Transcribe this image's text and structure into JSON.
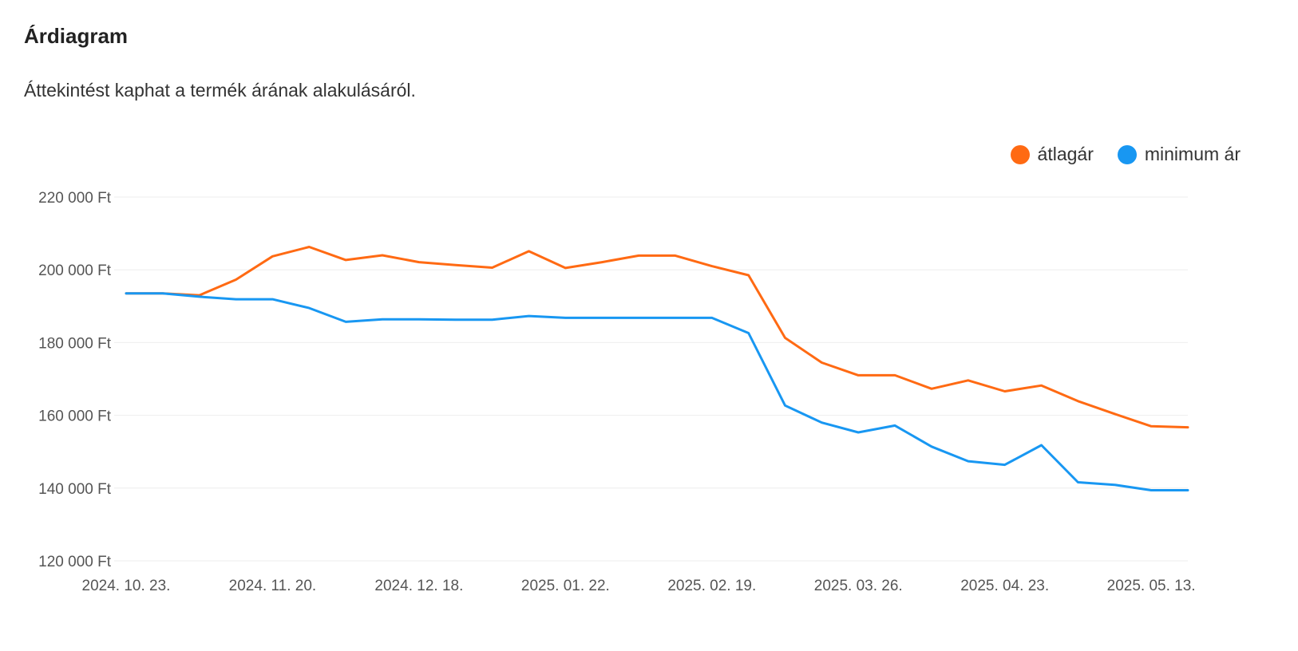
{
  "header": {
    "title": "Árdiagram",
    "subtitle": "Áttekintést kaphat a termék árának alakulásáról."
  },
  "colors": {
    "avg": "#ff6a13",
    "min": "#1897f2"
  },
  "chart_data": {
    "type": "line",
    "title": "",
    "xlabel": "",
    "ylabel": "",
    "ylim": [
      120000,
      220000
    ],
    "yticks": [
      220000,
      200000,
      180000,
      160000,
      140000,
      120000
    ],
    "ytick_labels": [
      "220 000 Ft",
      "200 000 Ft",
      "180 000 Ft",
      "160 000 Ft",
      "140 000 Ft",
      "120 000 Ft"
    ],
    "xtick_labels": [
      "2024. 10. 23.",
      "2024. 11. 20.",
      "2024. 12. 18.",
      "2025. 01. 22.",
      "2025. 02. 19.",
      "2025. 03. 26.",
      "2025. 04. 23.",
      "2025. 05. 13."
    ],
    "xtick_index": [
      0,
      4,
      8,
      12,
      16,
      20,
      24,
      28
    ],
    "grid": true,
    "legend_position": "top-right",
    "series": [
      {
        "name": "átlagár",
        "color": "#ff6a13",
        "values": [
          193500,
          193500,
          193000,
          197300,
          203700,
          206300,
          202700,
          204000,
          202100,
          201300,
          200600,
          205100,
          200500,
          202100,
          203900,
          203900,
          201000,
          198500,
          181300,
          174500,
          171000,
          171000,
          167300,
          169600,
          166600,
          168200,
          163900,
          160400,
          157000,
          156700
        ]
      },
      {
        "name": "minimum ár",
        "color": "#1897f2",
        "values": [
          193500,
          193500,
          192600,
          191900,
          191900,
          189500,
          185700,
          186400,
          186400,
          186300,
          186300,
          187300,
          186800,
          186800,
          186800,
          186800,
          186800,
          182600,
          162700,
          158000,
          155300,
          157200,
          151400,
          147400,
          146400,
          151800,
          141600,
          140900,
          139400,
          139400
        ]
      }
    ]
  }
}
